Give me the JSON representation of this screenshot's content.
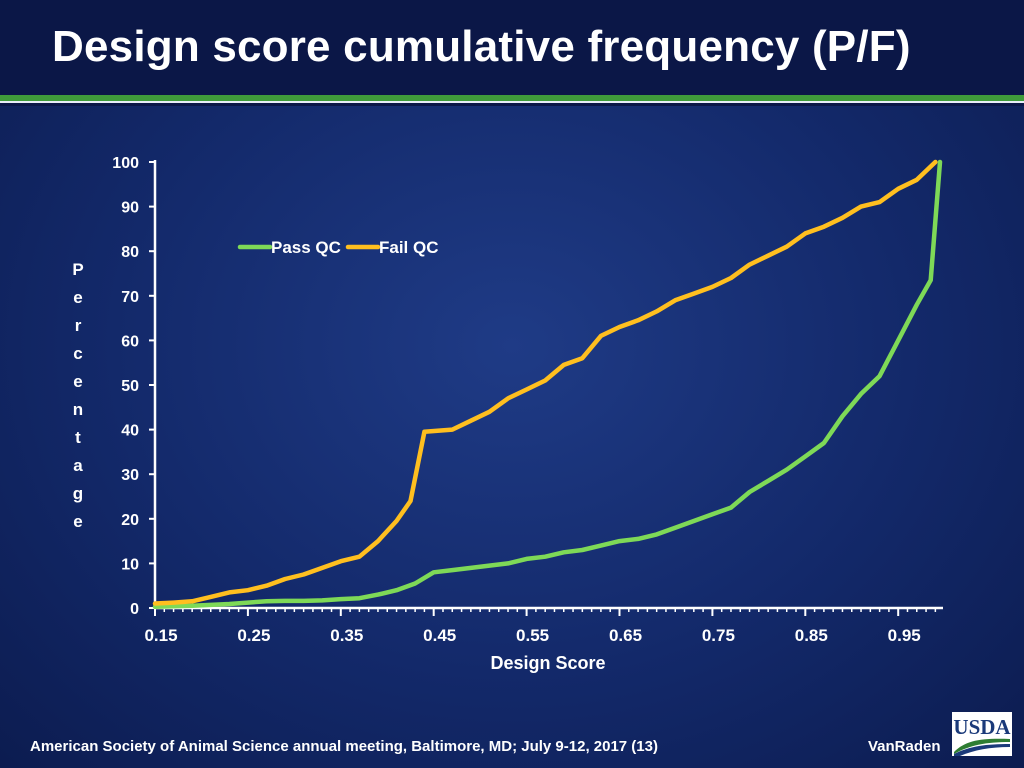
{
  "slide": {
    "title": "Design score cumulative frequency (P/F)",
    "footer_left": "American Society of Animal Science annual meeting, Baltimore, MD; July  9-12, 2017 (13)",
    "footer_right": "VanRaden",
    "logo_text": "USDA",
    "colors": {
      "background": "#13296a",
      "title_bar": "#0b1747",
      "stripe": "#3f9b3a"
    }
  },
  "chart_data": {
    "type": "line",
    "title": "",
    "xlabel": "Design Score",
    "ylabel": "Percentage",
    "xlim": [
      0.15,
      0.995
    ],
    "ylim": [
      0,
      100
    ],
    "x_ticks": [
      0.15,
      0.25,
      0.35,
      0.45,
      0.55,
      0.65,
      0.75,
      0.85,
      0.95
    ],
    "x_tick_labels": [
      "0.15",
      "0.25",
      "0.35",
      "0.45",
      "0.55",
      "0.65",
      "0.75",
      "0.85",
      "0.95"
    ],
    "y_ticks": [
      0,
      10,
      20,
      30,
      40,
      50,
      60,
      70,
      80,
      90,
      100
    ],
    "y_tick_labels": [
      "0",
      "10",
      "20",
      "30",
      "40",
      "50",
      "60",
      "70",
      "80",
      "90",
      "100"
    ],
    "legend_position": "top-left",
    "grid": false,
    "series": [
      {
        "name": "Pass QC",
        "color": "#7ed957",
        "x": [
          0.15,
          0.17,
          0.19,
          0.21,
          0.23,
          0.25,
          0.27,
          0.29,
          0.31,
          0.33,
          0.35,
          0.37,
          0.39,
          0.41,
          0.43,
          0.45,
          0.47,
          0.49,
          0.51,
          0.53,
          0.55,
          0.57,
          0.59,
          0.61,
          0.63,
          0.65,
          0.67,
          0.69,
          0.71,
          0.73,
          0.75,
          0.77,
          0.79,
          0.81,
          0.83,
          0.85,
          0.87,
          0.89,
          0.91,
          0.93,
          0.95,
          0.97,
          0.985,
          0.995
        ],
        "y": [
          0.3,
          0.4,
          0.5,
          0.7,
          0.9,
          1.2,
          1.5,
          1.6,
          1.6,
          1.7,
          2.0,
          2.2,
          3.0,
          4.0,
          5.5,
          8.0,
          8.5,
          9.0,
          9.5,
          10.0,
          11.0,
          11.5,
          12.5,
          13.0,
          14.0,
          15.0,
          15.5,
          16.5,
          18.0,
          19.5,
          21.0,
          22.5,
          26.0,
          28.5,
          31.0,
          34.0,
          37.0,
          43.0,
          48.0,
          52.0,
          60.0,
          68.0,
          73.5,
          100
        ]
      },
      {
        "name": "Fail QC",
        "color": "#ffbf1f",
        "x": [
          0.15,
          0.17,
          0.19,
          0.21,
          0.23,
          0.25,
          0.27,
          0.29,
          0.31,
          0.33,
          0.35,
          0.37,
          0.39,
          0.41,
          0.425,
          0.44,
          0.47,
          0.49,
          0.51,
          0.53,
          0.55,
          0.57,
          0.59,
          0.61,
          0.63,
          0.65,
          0.67,
          0.69,
          0.71,
          0.73,
          0.75,
          0.77,
          0.79,
          0.81,
          0.83,
          0.85,
          0.87,
          0.89,
          0.91,
          0.93,
          0.95,
          0.97,
          0.99
        ],
        "y": [
          1.0,
          1.2,
          1.5,
          2.5,
          3.5,
          4.0,
          5.0,
          6.5,
          7.5,
          9.0,
          10.5,
          11.5,
          15.0,
          19.5,
          24.0,
          39.5,
          40.0,
          42.0,
          44.0,
          47.0,
          49.0,
          51.0,
          54.5,
          56.0,
          61.0,
          63.0,
          64.5,
          66.5,
          69.0,
          70.5,
          72.0,
          74.0,
          77.0,
          79.0,
          81.0,
          84.0,
          85.5,
          87.5,
          90.0,
          91.0,
          94.0,
          96.0,
          100
        ]
      }
    ]
  }
}
